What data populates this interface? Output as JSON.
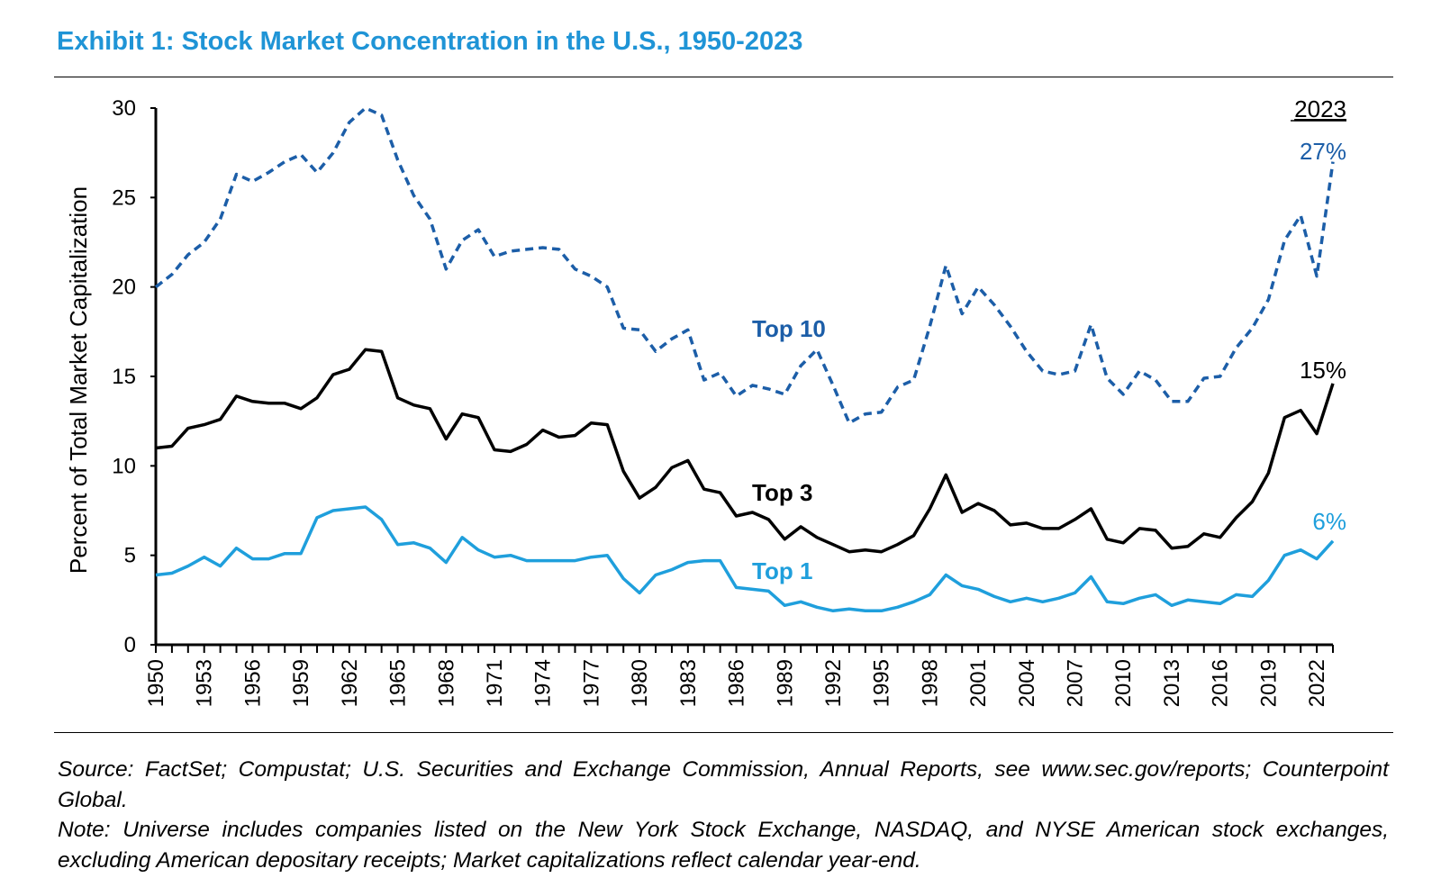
{
  "title": "Exhibit 1: Stock Market Concentration in the U.S., 1950-2023",
  "source": "Source: FactSet; Compustat; U.S. Securities and Exchange Commission, Annual Reports, see www.sec.gov/reports; Counterpoint Global.",
  "note": "Note: Universe includes companies listed on the New York Stock Exchange, NASDAQ, and NYSE American stock exchanges, excluding American depositary receipts; Market capitalizations reflect calendar year-end.",
  "colors": {
    "title": "#1f94d6",
    "top10": "#1c5ea8",
    "top3": "#000000",
    "top1": "#1f9fdc"
  },
  "chart_data": {
    "type": "line",
    "xlabel": "",
    "ylabel": "Percent of Total Market Capitalization",
    "ylim": [
      0,
      30
    ],
    "yticks": [
      "0",
      "5",
      "10",
      "15",
      "20",
      "25",
      "30"
    ],
    "xticks": [
      "1950",
      "1953",
      "1956",
      "1959",
      "1962",
      "1965",
      "1968",
      "1971",
      "1974",
      "1977",
      "1980",
      "1983",
      "1986",
      "1989",
      "1992",
      "1995",
      "1998",
      "2001",
      "2004",
      "2007",
      "2010",
      "2013",
      "2016",
      "2019",
      "2022"
    ],
    "grid": false,
    "x": [
      1950,
      1951,
      1952,
      1953,
      1954,
      1955,
      1956,
      1957,
      1958,
      1959,
      1960,
      1961,
      1962,
      1963,
      1964,
      1965,
      1966,
      1967,
      1968,
      1969,
      1970,
      1971,
      1972,
      1973,
      1974,
      1975,
      1976,
      1977,
      1978,
      1979,
      1980,
      1981,
      1982,
      1983,
      1984,
      1985,
      1986,
      1987,
      1988,
      1989,
      1990,
      1991,
      1992,
      1993,
      1994,
      1995,
      1996,
      1997,
      1998,
      1999,
      2000,
      2001,
      2002,
      2003,
      2004,
      2005,
      2006,
      2007,
      2008,
      2009,
      2010,
      2011,
      2012,
      2013,
      2014,
      2015,
      2016,
      2017,
      2018,
      2019,
      2020,
      2021,
      2022,
      2023
    ],
    "final_year_label": "2023",
    "series": [
      {
        "key": "top10",
        "name": "Top 10",
        "end_label": "27%",
        "style": "dashed",
        "values": [
          20.0,
          20.7,
          21.8,
          22.5,
          23.8,
          26.3,
          25.9,
          26.4,
          27.0,
          27.4,
          26.4,
          27.5,
          29.2,
          30.0,
          29.6,
          27.1,
          25.1,
          23.8,
          21.0,
          22.6,
          23.2,
          21.7,
          22.0,
          22.1,
          22.2,
          22.1,
          21.0,
          20.6,
          20.0,
          17.7,
          17.6,
          16.4,
          17.1,
          17.6,
          14.8,
          15.2,
          13.9,
          14.5,
          14.3,
          14.0,
          15.6,
          16.5,
          14.5,
          12.4,
          12.9,
          13.0,
          14.4,
          14.8,
          17.8,
          21.2,
          18.5,
          20.0,
          19.0,
          17.8,
          16.4,
          15.3,
          15.1,
          15.3,
          17.9,
          14.9,
          14.0,
          15.3,
          14.8,
          13.6,
          13.6,
          14.9,
          15.0,
          16.6,
          17.7,
          19.3,
          22.6,
          24.0,
          20.6,
          27.0
        ]
      },
      {
        "key": "top3",
        "name": "Top 3",
        "end_label": "15%",
        "style": "solid",
        "values": [
          11.0,
          11.1,
          12.1,
          12.3,
          12.6,
          13.9,
          13.6,
          13.5,
          13.5,
          13.2,
          13.8,
          15.1,
          15.4,
          16.5,
          16.4,
          13.8,
          13.4,
          13.2,
          11.5,
          12.9,
          12.7,
          10.9,
          10.8,
          11.2,
          12.0,
          11.6,
          11.7,
          12.4,
          12.3,
          9.7,
          8.2,
          8.8,
          9.9,
          10.3,
          8.7,
          8.5,
          7.2,
          7.4,
          7.0,
          5.9,
          6.6,
          6.0,
          5.6,
          5.2,
          5.3,
          5.2,
          5.6,
          6.1,
          7.6,
          9.5,
          7.4,
          7.9,
          7.5,
          6.7,
          6.8,
          6.5,
          6.5,
          7.0,
          7.6,
          5.9,
          5.7,
          6.5,
          6.4,
          5.4,
          5.5,
          6.2,
          6.0,
          7.1,
          8.0,
          9.6,
          12.7,
          13.1,
          11.8,
          14.6
        ]
      },
      {
        "key": "top1",
        "name": "Top 1",
        "end_label": "6%",
        "style": "solid",
        "values": [
          3.9,
          4.0,
          4.4,
          4.9,
          4.4,
          5.4,
          4.8,
          4.8,
          5.1,
          5.1,
          7.1,
          7.5,
          7.6,
          7.7,
          7.0,
          5.6,
          5.7,
          5.4,
          4.6,
          6.0,
          5.3,
          4.9,
          5.0,
          4.7,
          4.7,
          4.7,
          4.7,
          4.9,
          5.0,
          3.7,
          2.9,
          3.9,
          4.2,
          4.6,
          4.7,
          4.7,
          3.2,
          3.1,
          3.0,
          2.2,
          2.4,
          2.1,
          1.9,
          2.0,
          1.9,
          1.9,
          2.1,
          2.4,
          2.8,
          3.9,
          3.3,
          3.1,
          2.7,
          2.4,
          2.6,
          2.4,
          2.6,
          2.9,
          3.8,
          2.4,
          2.3,
          2.6,
          2.8,
          2.2,
          2.5,
          2.4,
          2.3,
          2.8,
          2.7,
          3.6,
          5.0,
          5.3,
          4.8,
          5.8
        ]
      }
    ]
  }
}
